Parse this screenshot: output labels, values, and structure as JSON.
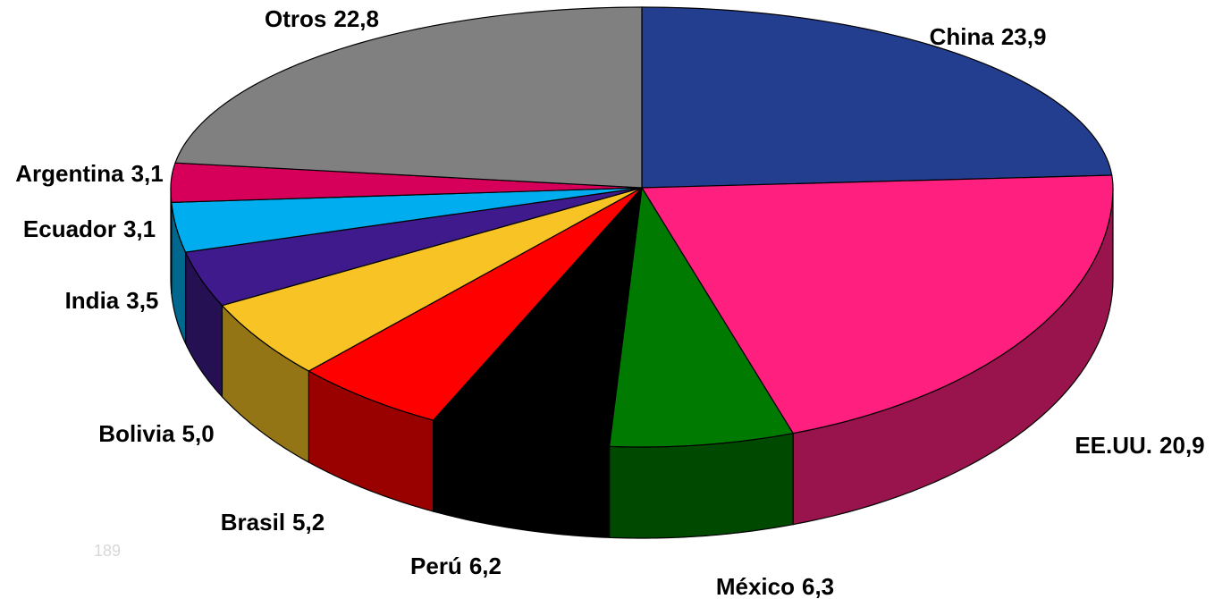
{
  "chart_data": {
    "type": "pie",
    "style": "3d",
    "categories": [
      "China",
      "EE.UU.",
      "México",
      "Perú",
      "Brasil",
      "Bolivia",
      "India",
      "Ecuador",
      "Argentina",
      "Otros"
    ],
    "values": [
      23.9,
      20.9,
      6.3,
      6.2,
      5.2,
      5.0,
      3.5,
      3.1,
      3.1,
      22.8
    ],
    "value_labels": [
      "23,9",
      "20,9",
      "6,3",
      "6,2",
      "5,2",
      "5,0",
      "3,5",
      "3,1",
      "3,1",
      "22,8"
    ],
    "colors": [
      "#233d8f",
      "#ff1f7f",
      "#007a00",
      "#000000",
      "#ff0000",
      "#f7c325",
      "#3f1a8c",
      "#00aeef",
      "#d6005a",
      "#808080"
    ],
    "annotation": "189"
  }
}
